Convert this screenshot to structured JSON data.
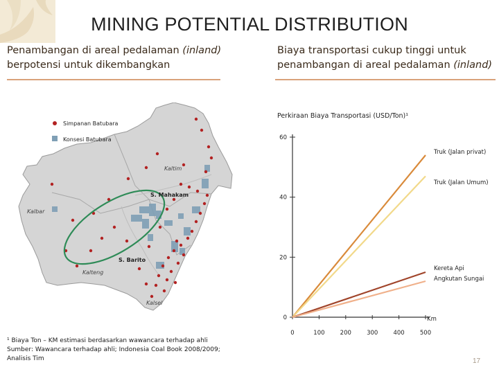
{
  "slide": {
    "title": "MINING POTENTIAL DISTRIBUTION",
    "page_number": "17",
    "left_heading": [
      {
        "text": "Penambangan di areal pedalaman ",
        "em": "(inland)"
      },
      {
        "text": "berpotensi untuk dikembangkan",
        "em": ""
      }
    ],
    "right_heading": [
      {
        "text": "Biaya transportasi cukup tinggi untuk",
        "em": ""
      },
      {
        "text": "penambangan di areal pedalaman ",
        "em": "(inland)"
      }
    ],
    "footnote": [
      "¹ Biaya Ton – KM estimasi berdasarkan wawancara terhadap ahli",
      "Sumber: Wawancara terhadap ahli; Indonesia Coal Book 2008/2009;",
      "Analisis Tim"
    ]
  },
  "map": {
    "legend": [
      {
        "label": "Simpanan Batubara",
        "icon": "red-dot-icon",
        "color": "#b22222"
      },
      {
        "label": "Konsesi Batubara",
        "icon": "blue-square-icon",
        "color": "#7f9fb5"
      }
    ],
    "region_labels": [
      "Kaltim",
      "Kalbar",
      "Kalteng",
      "Kalsel"
    ],
    "river_labels": [
      "S. Mahakam",
      "S. Barito"
    ],
    "colors": {
      "land": "#d5d5d5",
      "ellipse": "#2e8b57",
      "deposit": "#b22222",
      "concession": "#7f9fb5"
    }
  },
  "chart_data": {
    "type": "line",
    "title": "Perkiraan Biaya Transportasi (USD/Ton)¹",
    "xlabel": "Km",
    "ylabel": "",
    "x_ticks": [
      "0",
      "100",
      "200",
      "300",
      "400",
      "500"
    ],
    "y_ticks": [
      "0",
      "20",
      "40",
      "60"
    ],
    "xlim": [
      0,
      500
    ],
    "ylim": [
      0,
      60
    ],
    "grid": false,
    "series": [
      {
        "name": "Truk (Jalan privat)",
        "color": "#d98a3a",
        "x": [
          0,
          500
        ],
        "y": [
          0,
          54
        ]
      },
      {
        "name": "Truk (Jalan Umum)",
        "color": "#f2d98a",
        "x": [
          0,
          500
        ],
        "y": [
          0,
          47
        ]
      },
      {
        "name": "Kereta Api",
        "color": "#a0442a",
        "x": [
          0,
          500
        ],
        "y": [
          0,
          15
        ]
      },
      {
        "name": "Angkutan Sungai",
        "color": "#f0b08a",
        "x": [
          0,
          500
        ],
        "y": [
          0,
          12
        ]
      }
    ]
  }
}
